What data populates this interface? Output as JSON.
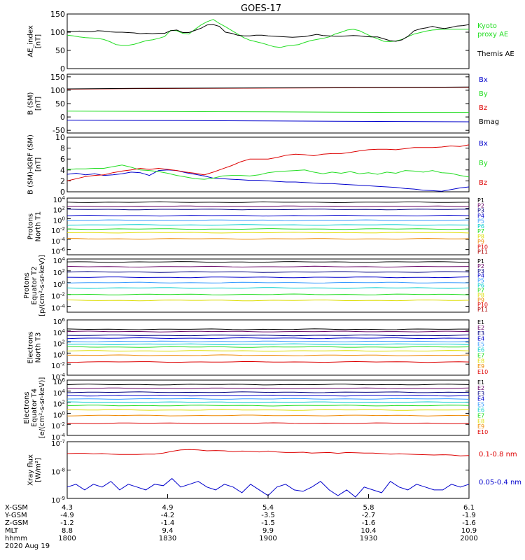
{
  "title": "GOES-17",
  "colors": {
    "black": "#000000",
    "green": "#22dd22",
    "red": "#dd0000",
    "blue": "#0000cc",
    "lightblue": "#3399ff",
    "cyan": "#00cccc",
    "yellow": "#dddd00",
    "orange": "#ee8800",
    "darkred": "#aa0000",
    "purple": "#660066",
    "navy": "#000080"
  },
  "ticks": {
    "ae": [
      "150",
      "100",
      "50",
      "0"
    ],
    "b": [
      "150",
      "100",
      "50",
      "0",
      "-50"
    ],
    "bdiff": [
      "10",
      "8",
      "6",
      "4",
      "2",
      "0"
    ],
    "p1": [
      {
        "b": "10",
        "e": "4"
      },
      {
        "b": "10",
        "e": "2"
      },
      {
        "b": "10",
        "e": "0"
      },
      {
        "b": "10",
        "e": "-2"
      },
      {
        "b": "10",
        "e": "-4"
      },
      {
        "b": "10",
        "e": "-6"
      }
    ],
    "p2": [
      {
        "b": "10",
        "e": "4"
      },
      {
        "b": "10",
        "e": "2"
      },
      {
        "b": "10",
        "e": "0"
      },
      {
        "b": "10",
        "e": "-2"
      },
      {
        "b": "10",
        "e": "-4"
      }
    ],
    "e3": [
      {
        "b": "10",
        "e": "6"
      },
      {
        "b": "10",
        "e": "4"
      },
      {
        "b": "10",
        "e": "2"
      },
      {
        "b": "10",
        "e": "0"
      },
      {
        "b": "10",
        "e": "-2"
      },
      {
        "b": "10",
        "e": "-4"
      }
    ],
    "e4": [
      {
        "b": "10",
        "e": "6"
      },
      {
        "b": "10",
        "e": "4"
      },
      {
        "b": "10",
        "e": "2"
      },
      {
        "b": "10",
        "e": "0"
      },
      {
        "b": "10",
        "e": "-2"
      },
      {
        "b": "10",
        "e": "-4"
      }
    ],
    "xray": [
      {
        "b": "10",
        "e": "-7"
      },
      {
        "b": "10",
        "e": "-8"
      },
      {
        "b": "10",
        "e": "-9"
      }
    ]
  },
  "chart_data": [
    {
      "type": "line",
      "panel": "ae",
      "ylabel": [
        "AE_index",
        "[nT]"
      ],
      "ylim": [
        0,
        150
      ],
      "legend": [
        [
          "Kyoto",
          "proxy AE"
        ],
        [
          "Themis AE"
        ]
      ],
      "series": [
        {
          "name": "Kyoto proxy AE",
          "color": "green",
          "values": [
            92,
            90,
            87,
            85,
            84,
            83,
            80,
            74,
            66,
            64,
            64,
            67,
            72,
            77,
            79,
            83,
            88,
            105,
            104,
            97,
            95,
            108,
            120,
            129,
            135,
            124,
            115,
            105,
            95,
            85,
            78,
            74,
            70,
            65,
            60,
            58,
            62,
            64,
            66,
            72,
            77,
            80,
            83,
            87,
            95,
            100,
            106,
            108,
            104,
            96,
            88,
            82,
            75,
            74,
            76,
            80,
            88,
            95,
            99,
            103,
            106,
            107,
            108,
            108,
            108,
            108,
            108
          ]
        },
        {
          "name": "Themis AE",
          "color": "black",
          "values": [
            102,
            102,
            103,
            101,
            101,
            104,
            103,
            101,
            100,
            100,
            99,
            98,
            96,
            97,
            96,
            97,
            97,
            104,
            106,
            99,
            99,
            105,
            111,
            120,
            121,
            116,
            100,
            97,
            92,
            90,
            90,
            92,
            92,
            90,
            89,
            88,
            87,
            86,
            87,
            88,
            91,
            94,
            91,
            90,
            89,
            89,
            90,
            91,
            90,
            88,
            87,
            87,
            82,
            77,
            75,
            79,
            89,
            104,
            109,
            112,
            116,
            112,
            110,
            113,
            117,
            118,
            121
          ]
        }
      ]
    },
    {
      "type": "line",
      "panel": "b",
      "ylabel": [
        "B (SM)",
        "[nT]"
      ],
      "ylim": [
        -60,
        160
      ],
      "legend": [
        "Bx",
        "By",
        "Bz",
        "Bmag"
      ],
      "series": [
        {
          "name": "Bx",
          "color": "blue",
          "values": [
            -12,
            -13,
            -14,
            -15,
            -16,
            -17,
            -18
          ]
        },
        {
          "name": "By",
          "color": "green",
          "values": [
            22,
            21,
            20,
            19,
            18,
            17,
            17
          ]
        },
        {
          "name": "Bz",
          "color": "red",
          "values": [
            104,
            106,
            107,
            108,
            109,
            110,
            111
          ]
        },
        {
          "name": "Bmag",
          "color": "black",
          "values": [
            105,
            107,
            108,
            109,
            110,
            111,
            112
          ]
        }
      ]
    },
    {
      "type": "line",
      "panel": "bdiff",
      "ylabel": [
        "B (SM)-IGRF (SM)",
        "[nT]"
      ],
      "ylim": [
        0,
        10
      ],
      "legend": [
        "Bx",
        "By",
        "Bz"
      ],
      "series": [
        {
          "name": "Bx",
          "color": "blue",
          "values": [
            3.2,
            3.4,
            3.1,
            3.3,
            3.0,
            3.1,
            3.3,
            3.6,
            3.5,
            3.0,
            3.9,
            4.0,
            3.9,
            3.5,
            3.2,
            2.9,
            2.5,
            2.4,
            2.3,
            2.2,
            2.1,
            2.1,
            2.0,
            1.9,
            1.8,
            1.8,
            1.7,
            1.6,
            1.5,
            1.5,
            1.4,
            1.3,
            1.2,
            1.1,
            1.0,
            0.9,
            0.8,
            0.6,
            0.5,
            0.3,
            0.2,
            0.1,
            0.4,
            0.7,
            0.9
          ]
        },
        {
          "name": "By",
          "color": "green",
          "values": [
            4.1,
            4.2,
            4.2,
            4.3,
            4.3,
            4.6,
            4.9,
            4.5,
            4.0,
            3.9,
            3.7,
            3.4,
            3.0,
            2.7,
            2.4,
            2.3,
            2.5,
            2.9,
            3.0,
            3.0,
            2.9,
            3.1,
            3.5,
            3.7,
            3.8,
            3.9,
            4.0,
            3.6,
            3.3,
            3.6,
            3.4,
            3.7,
            3.3,
            3.5,
            3.2,
            3.6,
            3.4,
            3.9,
            3.8,
            3.6,
            3.9,
            3.5,
            3.4,
            3.0,
            2.7
          ]
        },
        {
          "name": "Bz",
          "color": "red",
          "values": [
            2.0,
            2.4,
            2.8,
            3.0,
            3.1,
            3.5,
            3.8,
            4.0,
            4.3,
            4.1,
            4.3,
            4.1,
            3.9,
            3.6,
            3.4,
            3.1,
            3.6,
            4.2,
            4.8,
            5.5,
            6.0,
            6.0,
            6.0,
            6.3,
            6.7,
            6.9,
            6.8,
            6.6,
            6.9,
            7.0,
            7.0,
            7.2,
            7.5,
            7.7,
            7.8,
            7.8,
            7.7,
            7.9,
            8.1,
            8.1,
            8.1,
            8.2,
            8.4,
            8.3,
            8.6
          ]
        }
      ]
    },
    {
      "type": "line",
      "panel": "p1",
      "yscale": "log",
      "ylabel": [
        "Protons",
        "North T1"
      ],
      "ylim_exp": [
        -7,
        4
      ],
      "legend": [
        "P1",
        "P2",
        "P3",
        "P4",
        "P5",
        "P6",
        "P7",
        "P8",
        "P9",
        "P10",
        "P11"
      ],
      "series": [
        {
          "name": "P1",
          "color": "black",
          "log10": 3.2
        },
        {
          "name": "P2",
          "color": "purple",
          "log10": 2.4
        },
        {
          "name": "P3",
          "color": "navy",
          "log10": 1.8
        },
        {
          "name": "P4",
          "color": "blue",
          "log10": 0.6
        },
        {
          "name": "P5",
          "color": "lightblue",
          "log10": -0.3
        },
        {
          "name": "P6",
          "color": "cyan",
          "log10": -1.2
        },
        {
          "name": "P7",
          "color": "green",
          "log10": -2.0
        },
        {
          "name": "P8",
          "color": "yellow",
          "log10": -2.7
        },
        {
          "name": "P9",
          "color": "orange",
          "log10": -3.9
        }
      ]
    },
    {
      "type": "line",
      "panel": "p2",
      "yscale": "log",
      "ylabel": [
        "Protons",
        "Equator T2",
        "[p/(cm²-s-sr-keV)]"
      ],
      "ylim_exp": [
        -5,
        4
      ],
      "legend": [
        "P1",
        "P2",
        "P3",
        "P4",
        "P5",
        "P6",
        "P7",
        "P8",
        "P9",
        "P10",
        "P11"
      ],
      "series": [
        {
          "name": "P1",
          "color": "black",
          "log10": 3.5
        },
        {
          "name": "P2",
          "color": "purple",
          "log10": 2.7
        },
        {
          "name": "P3",
          "color": "navy",
          "log10": 1.8
        },
        {
          "name": "P4",
          "color": "blue",
          "log10": 0.9
        },
        {
          "name": "P5",
          "color": "lightblue",
          "log10": 0.0
        },
        {
          "name": "P6",
          "color": "cyan",
          "log10": -0.9
        },
        {
          "name": "P7",
          "color": "green",
          "log10": -2.0
        },
        {
          "name": "P8",
          "color": "yellow",
          "log10": -3.0
        }
      ]
    },
    {
      "type": "line",
      "panel": "e3",
      "yscale": "log",
      "ylabel": [
        "Electrons",
        "North T3"
      ],
      "ylim_exp": [
        -4,
        6
      ],
      "legend": [
        "E1",
        "E2",
        "E3",
        "E4",
        "E5",
        "E6",
        "E7",
        "E8",
        "E9",
        "E10"
      ],
      "series": [
        {
          "name": "E1",
          "color": "black",
          "log10": 4.3
        },
        {
          "name": "E2",
          "color": "purple",
          "log10": 3.9
        },
        {
          "name": "E3",
          "color": "navy",
          "log10": 3.2
        },
        {
          "name": "E4",
          "color": "blue",
          "log10": 2.7
        },
        {
          "name": "E5",
          "color": "lightblue",
          "log10": 2.1
        },
        {
          "name": "E6",
          "color": "cyan",
          "log10": 1.6
        },
        {
          "name": "E7",
          "color": "green",
          "log10": 1.1
        },
        {
          "name": "E8",
          "color": "yellow",
          "log10": 0.4
        },
        {
          "name": "E9",
          "color": "orange",
          "log10": -0.4
        },
        {
          "name": "E10",
          "color": "red",
          "log10": -1.6
        }
      ]
    },
    {
      "type": "line",
      "panel": "e4",
      "yscale": "log",
      "ylabel": [
        "Electrons",
        "Equator T4",
        "[e/(cm²-s-sr-keV)]"
      ],
      "ylim_exp": [
        -4,
        6
      ],
      "legend": [
        "E1",
        "E2",
        "E3",
        "E4",
        "E5",
        "E6",
        "E7",
        "E8",
        "E9",
        "E10"
      ],
      "series": [
        {
          "name": "E1",
          "color": "black",
          "log10": 5.2
        },
        {
          "name": "E2",
          "color": "purple",
          "log10": 4.5
        },
        {
          "name": "E3",
          "color": "navy",
          "log10": 3.8
        },
        {
          "name": "E4",
          "color": "blue",
          "log10": 3.2
        },
        {
          "name": "E5",
          "color": "lightblue",
          "log10": 2.6
        },
        {
          "name": "E6",
          "color": "cyan",
          "log10": 2.0
        },
        {
          "name": "E7",
          "color": "green",
          "log10": 1.4
        },
        {
          "name": "E8",
          "color": "yellow",
          "log10": 0.6
        },
        {
          "name": "E9",
          "color": "orange",
          "log10": -0.4
        },
        {
          "name": "E10",
          "color": "red",
          "log10": -1.8
        }
      ]
    },
    {
      "type": "line",
      "panel": "xray",
      "yscale": "log",
      "ylabel": [
        "Xray flux",
        "[W/m²]"
      ],
      "ylim_exp": [
        -9,
        -7
      ],
      "legend": [
        "0.1-0.8 nm",
        "0.05-0.4 nm"
      ],
      "series": [
        {
          "name": "0.1-0.8 nm",
          "color": "red",
          "values": [
            -7.42,
            -7.41,
            -7.41,
            -7.43,
            -7.42,
            -7.44,
            -7.45,
            -7.45,
            -7.45,
            -7.44,
            -7.44,
            -7.4,
            -7.34,
            -7.29,
            -7.28,
            -7.29,
            -7.32,
            -7.31,
            -7.32,
            -7.35,
            -7.33,
            -7.34,
            -7.36,
            -7.33,
            -7.36,
            -7.38,
            -7.38,
            -7.37,
            -7.4,
            -7.39,
            -7.38,
            -7.41,
            -7.38,
            -7.39,
            -7.4,
            -7.4,
            -7.42,
            -7.44,
            -7.43,
            -7.44,
            -7.45,
            -7.46,
            -7.47,
            -7.46,
            -7.47,
            -7.5,
            -7.49
          ]
        },
        {
          "name": "0.05-0.4 nm",
          "color": "blue",
          "values": [
            -8.6,
            -8.5,
            -8.7,
            -8.5,
            -8.6,
            -8.4,
            -8.7,
            -8.5,
            -8.6,
            -8.7,
            -8.5,
            -8.55,
            -8.3,
            -8.6,
            -8.5,
            -8.4,
            -8.6,
            -8.7,
            -8.5,
            -8.6,
            -8.8,
            -8.5,
            -8.7,
            -8.9,
            -8.6,
            -8.5,
            -8.7,
            -8.75,
            -8.6,
            -8.4,
            -8.7,
            -8.9,
            -8.7,
            -8.95,
            -8.6,
            -8.7,
            -8.8,
            -8.4,
            -8.6,
            -8.7,
            -8.5,
            -8.6,
            -8.7,
            -8.7,
            -8.5,
            -8.6,
            -8.5
          ]
        }
      ]
    }
  ],
  "xaxis": {
    "row_labels": [
      "X-GSM",
      "Y-GSM",
      "Z-GSM",
      "MLT",
      "hhmm",
      "2020 Aug 19"
    ],
    "columns": [
      [
        "4.3",
        "-4.9",
        "-1.2",
        "8.8",
        "1800"
      ],
      [
        "4.9",
        "-4.2",
        "-1.4",
        "9.4",
        "1830"
      ],
      [
        "5.4",
        "-3.5",
        "-1.5",
        "9.9",
        "1900"
      ],
      [
        "5.8",
        "-2.7",
        "-1.6",
        "10.4",
        "1930"
      ],
      [
        "6.1",
        "-1.9",
        "-1.6",
        "10.9",
        "2000"
      ]
    ]
  }
}
